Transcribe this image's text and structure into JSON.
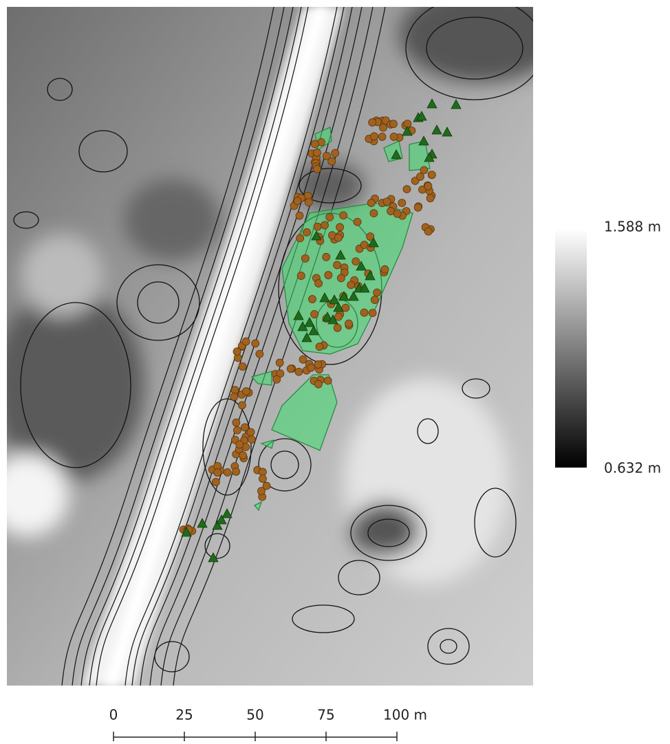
{
  "legend": {
    "max_label": "1.588 m",
    "min_label": "0.632 m"
  },
  "scale_bar": {
    "labels": [
      "0",
      "25",
      "50",
      "75",
      "100 m"
    ]
  }
}
